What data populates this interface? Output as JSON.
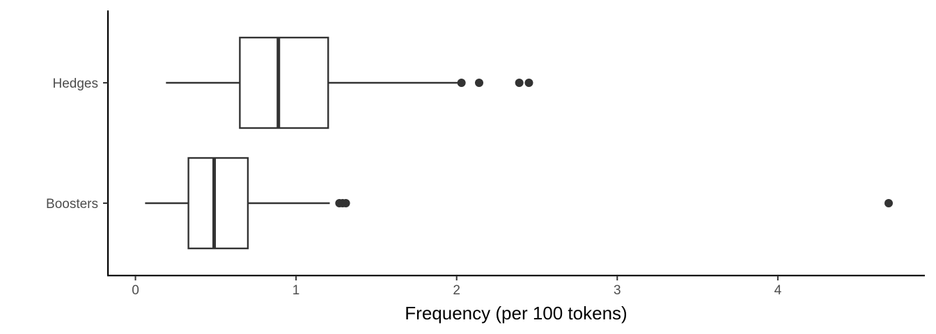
{
  "chart_data": {
    "type": "boxplot",
    "orientation": "horizontal",
    "title": "",
    "xlabel": "Frequency (per 100 tokens)",
    "ylabel": "",
    "xlim": [
      -0.17,
      4.9
    ],
    "xticks": [
      0,
      1,
      2,
      3,
      4
    ],
    "grid": false,
    "legend": "none",
    "colors": {
      "line": "#333333",
      "fill": "#ffffff",
      "axis": "#000000",
      "tick_label": "#4d4d4d"
    },
    "categories": [
      "Hedges",
      "Boosters"
    ],
    "boxes": [
      {
        "category": "Hedges",
        "whisker_low": 0.19,
        "q1": 0.65,
        "median": 0.89,
        "q3": 1.2,
        "whisker_high": 2.02,
        "outliers": [
          2.03,
          2.14,
          2.39,
          2.45
        ]
      },
      {
        "category": "Boosters",
        "whisker_low": 0.06,
        "q1": 0.33,
        "median": 0.49,
        "q3": 0.7,
        "whisker_high": 1.21,
        "outliers": [
          1.27,
          1.29,
          1.31,
          4.69
        ]
      }
    ]
  }
}
